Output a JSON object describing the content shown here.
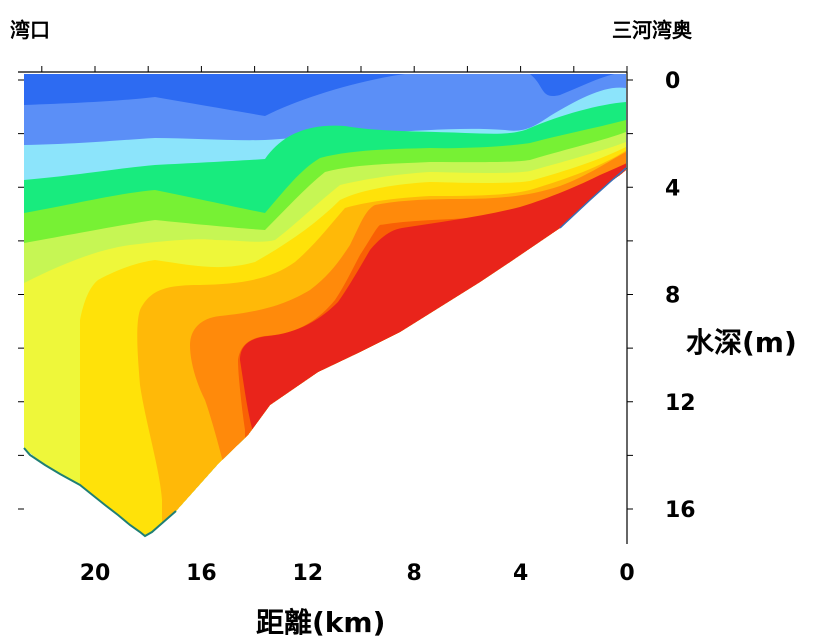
{
  "labels": {
    "left_corner": "湾口",
    "right_corner": "三河湾奥",
    "xlabel": "距離(km)",
    "ylabel": "水深(m)"
  },
  "chart_data": {
    "type": "heatmap",
    "x_ticks": [
      20,
      16,
      12,
      8,
      4,
      0
    ],
    "y_ticks": [
      0,
      4,
      8,
      12,
      16
    ],
    "xlim": [
      22.2,
      0
    ],
    "ylim": [
      0,
      17.5
    ],
    "x_reversed": true,
    "y_reversed": true,
    "grid": false,
    "colors": [
      "#2d6bf2",
      "#5b8ff7",
      "#8ce4fb",
      "#18eb7e",
      "#77f134",
      "#c6f654",
      "#eef73a",
      "#ffe209",
      "#ffb908",
      "#ff8a0b",
      "#f96005",
      "#e9241b"
    ],
    "bottom_depth_profile": [
      {
        "x": 22.2,
        "depth": 13.9
      },
      {
        "x": 21.7,
        "depth": 14.4
      },
      {
        "x": 20.7,
        "depth": 15.2
      },
      {
        "x": 19.6,
        "depth": 16.3
      },
      {
        "x": 18.9,
        "depth": 16.9
      },
      {
        "x": 18.2,
        "depth": 17.3
      },
      {
        "x": 17.6,
        "depth": 16.8
      },
      {
        "x": 16.8,
        "depth": 15.6
      },
      {
        "x": 16.0,
        "depth": 14.7
      },
      {
        "x": 14.9,
        "depth": 13.8
      },
      {
        "x": 13.9,
        "depth": 12.4
      },
      {
        "x": 13.0,
        "depth": 11.9
      },
      {
        "x": 11.9,
        "depth": 11.4
      },
      {
        "x": 10.0,
        "depth": 10.5
      },
      {
        "x": 8.2,
        "depth": 9.6
      },
      {
        "x": 6.2,
        "depth": 8.2
      },
      {
        "x": 4.1,
        "depth": 6.9
      },
      {
        "x": 2.3,
        "depth": 5.6
      },
      {
        "x": 0.7,
        "depth": 4.2
      },
      {
        "x": 0.2,
        "depth": 3.4
      }
    ],
    "isoline_depths": [
      [
        [
          22.2,
          0.7
        ],
        [
          17.4,
          0.8
        ],
        [
          13.4,
          1.0
        ],
        [
          12.0,
          0.8
        ],
        [
          8.8,
          0.0
        ],
        [
          4.0,
          0.0
        ],
        [
          3.4,
          0.8
        ],
        [
          2.0,
          0.0
        ]
      ],
      [
        [
          22.2,
          2.2
        ],
        [
          17.6,
          2.0
        ],
        [
          13.4,
          1.9
        ],
        [
          9.8,
          1.9
        ],
        [
          7.4,
          1.7
        ],
        [
          4.2,
          1.9
        ],
        [
          2.8,
          1.6
        ],
        [
          0.4,
          0.6
        ]
      ],
      [
        [
          22.2,
          3.5
        ],
        [
          17.6,
          3.1
        ],
        [
          13.4,
          2.9
        ],
        [
          12.0,
          1.8
        ],
        [
          10.0,
          2.4
        ],
        [
          7.6,
          2.3
        ],
        [
          4.0,
          2.1
        ],
        [
          2.0,
          1.4
        ],
        [
          0.4,
          1.1
        ]
      ],
      [
        [
          22.2,
          4.7
        ],
        [
          17.6,
          4.1
        ],
        [
          13.4,
          4.7
        ],
        [
          12.4,
          3.8
        ],
        [
          10.6,
          2.9
        ],
        [
          8.2,
          2.7
        ],
        [
          4.0,
          2.7
        ],
        [
          2.0,
          1.7
        ],
        [
          0.4,
          1.6
        ]
      ],
      [
        [
          22.2,
          5.6
        ],
        [
          17.6,
          5.1
        ],
        [
          13.4,
          5.6
        ],
        [
          11.8,
          4.6
        ],
        [
          10.4,
          3.5
        ],
        [
          8.2,
          3.2
        ],
        [
          4.0,
          3.3
        ],
        [
          2.0,
          2.3
        ],
        [
          0.4,
          2.1
        ]
      ],
      [
        [
          22.2,
          7.0
        ],
        [
          17.6,
          5.5
        ],
        [
          13.8,
          6.1
        ],
        [
          11.4,
          4.7
        ],
        [
          10.0,
          3.9
        ],
        [
          7.6,
          3.8
        ],
        [
          4.0,
          3.7
        ],
        [
          1.6,
          2.7
        ],
        [
          0.4,
          2.5
        ]
      ],
      [
        [
          22.2,
          7.8
        ],
        [
          20.4,
          6.5
        ],
        [
          17.6,
          5.8
        ],
        [
          13.4,
          6.9
        ],
        [
          11.6,
          5.7
        ],
        [
          9.8,
          4.2
        ],
        [
          7.6,
          4.0
        ],
        [
          4.0,
          4.1
        ],
        [
          1.6,
          3.0
        ],
        [
          0.4,
          2.8
        ]
      ],
      [
        [
          20.4,
          8.5
        ],
        [
          19.8,
          12.1
        ],
        [
          18.6,
          13.0
        ],
        [
          17.4,
          14.0
        ]
      ],
      [
        [
          17.6,
          7.0
        ],
        [
          18.4,
          9.4
        ],
        [
          17.4,
          12.8
        ],
        [
          16.4,
          14.0
        ]
      ],
      [
        [
          17.0,
          8.6
        ],
        [
          16.6,
          9.8
        ],
        [
          15.6,
          11.8
        ],
        [
          14.6,
          13.0
        ]
      ],
      [
        [
          14.8,
          8.4
        ],
        [
          15.0,
          10.8
        ],
        [
          14.0,
          12.0
        ],
        [
          13.6,
          12.3
        ]
      ],
      [
        [
          12.8,
          8.2
        ],
        [
          11.4,
          6.6
        ],
        [
          9.8,
          5.3
        ],
        [
          7.4,
          4.9
        ],
        [
          5.0,
          4.8
        ],
        [
          2.8,
          4.1
        ],
        [
          1.0,
          3.3
        ]
      ],
      [
        [
          10.0,
          6.7
        ],
        [
          9.4,
          5.8
        ],
        [
          8.8,
          5.5
        ],
        [
          6.8,
          5.0
        ],
        [
          3.4,
          4.6
        ],
        [
          1.4,
          3.4
        ],
        [
          0.7,
          3.3
        ]
      ]
    ]
  }
}
